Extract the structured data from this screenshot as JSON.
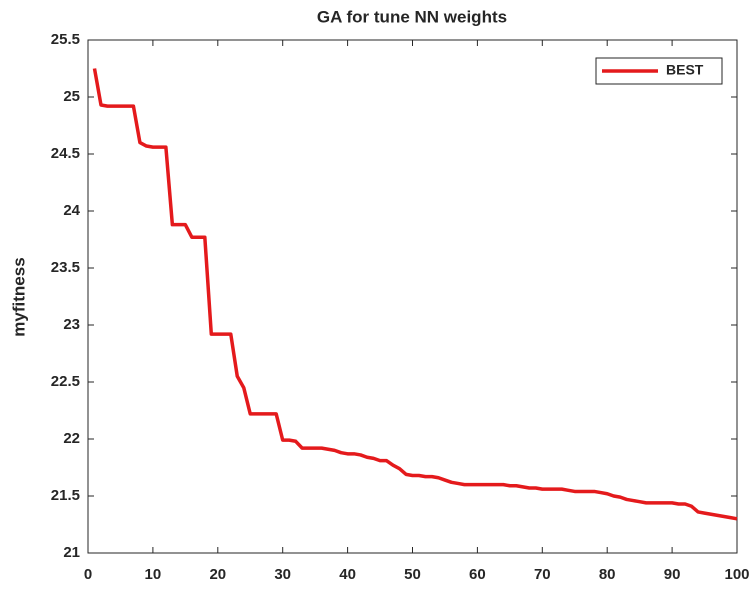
{
  "chart_data": {
    "type": "line",
    "title": "GA for tune NN weights",
    "y_label": "myfitness",
    "x": [
      1,
      2,
      3,
      4,
      5,
      6,
      7,
      8,
      9,
      10,
      11,
      12,
      13,
      14,
      15,
      16,
      17,
      18,
      19,
      20,
      21,
      22,
      23,
      24,
      25,
      26,
      27,
      28,
      29,
      30,
      31,
      32,
      33,
      34,
      35,
      36,
      37,
      38,
      39,
      40,
      41,
      42,
      43,
      44,
      45,
      46,
      47,
      48,
      49,
      50,
      51,
      52,
      53,
      54,
      55,
      56,
      57,
      58,
      59,
      60,
      61,
      62,
      63,
      64,
      65,
      66,
      67,
      68,
      69,
      70,
      71,
      72,
      73,
      74,
      75,
      76,
      77,
      78,
      79,
      80,
      81,
      82,
      83,
      84,
      85,
      86,
      87,
      88,
      89,
      90,
      91,
      92,
      93,
      94,
      95,
      96,
      97,
      98,
      99,
      100
    ],
    "series": [
      {
        "name": "BEST",
        "color": "#e41a1c",
        "values": [
          25.25,
          24.93,
          24.92,
          24.92,
          24.92,
          24.92,
          24.92,
          24.6,
          24.57,
          24.56,
          24.56,
          24.56,
          23.88,
          23.88,
          23.88,
          23.77,
          23.77,
          23.77,
          22.92,
          22.92,
          22.92,
          22.92,
          22.55,
          22.45,
          22.22,
          22.22,
          22.22,
          22.22,
          22.22,
          21.99,
          21.99,
          21.98,
          21.92,
          21.92,
          21.92,
          21.92,
          21.91,
          21.9,
          21.88,
          21.87,
          21.87,
          21.86,
          21.84,
          21.83,
          21.81,
          21.81,
          21.77,
          21.74,
          21.69,
          21.68,
          21.68,
          21.67,
          21.67,
          21.66,
          21.64,
          21.62,
          21.61,
          21.6,
          21.6,
          21.6,
          21.6,
          21.6,
          21.6,
          21.6,
          21.59,
          21.59,
          21.58,
          21.57,
          21.57,
          21.56,
          21.56,
          21.56,
          21.56,
          21.55,
          21.54,
          21.54,
          21.54,
          21.54,
          21.53,
          21.52,
          21.5,
          21.49,
          21.47,
          21.46,
          21.45,
          21.44,
          21.44,
          21.44,
          21.44,
          21.44,
          21.43,
          21.43,
          21.41,
          21.36,
          21.35,
          21.34,
          21.33,
          21.32,
          21.31,
          21.3
        ]
      }
    ],
    "xlim": [
      0,
      100
    ],
    "xticks": [
      0,
      10,
      20,
      30,
      40,
      50,
      60,
      70,
      80,
      90,
      100
    ],
    "ylim": [
      21,
      25.5
    ],
    "yticks": [
      21,
      21.5,
      22,
      22.5,
      23,
      23.5,
      24,
      24.5,
      25,
      25.5
    ],
    "legend": "upper right",
    "grid": false
  }
}
